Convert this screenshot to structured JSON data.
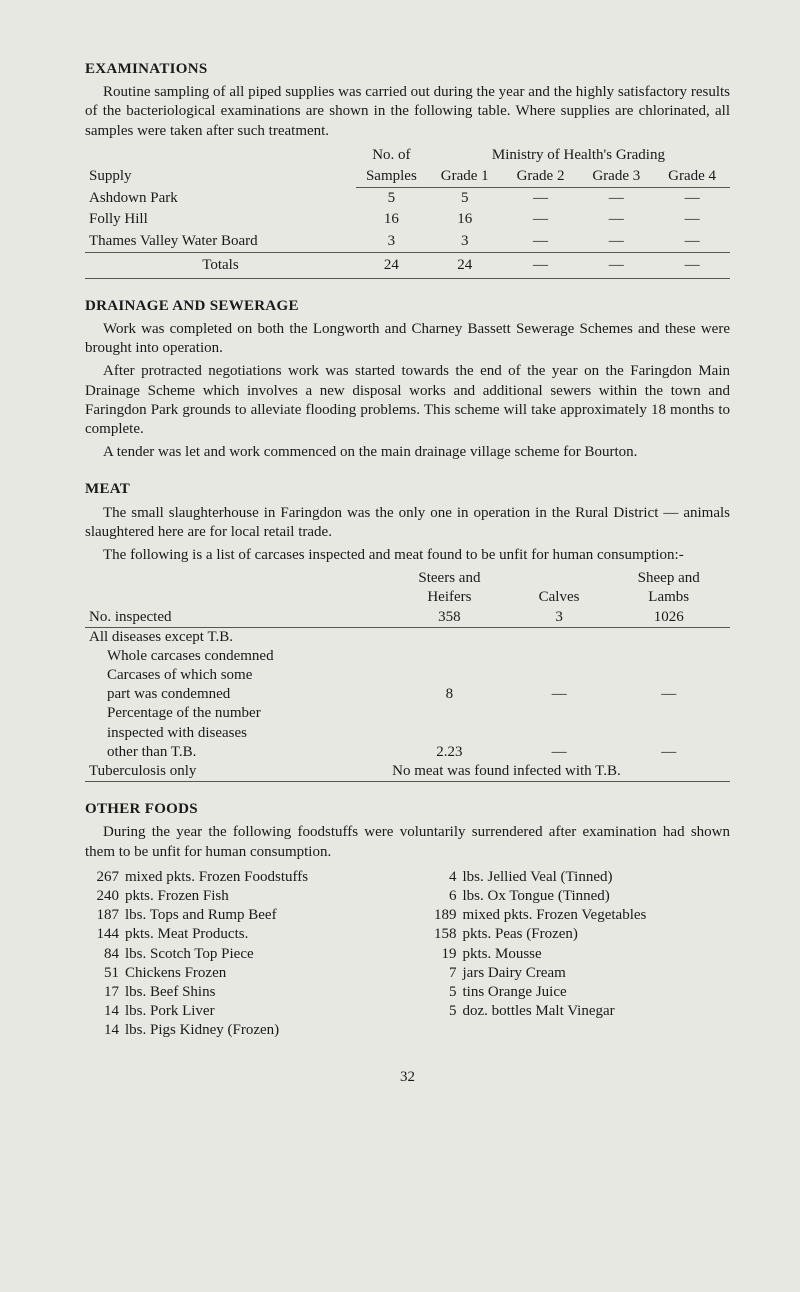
{
  "exam": {
    "heading": "EXAMINATIONS",
    "intro": "Routine sampling of all piped supplies was carried out during the year and the highly satisfactory results of the bacteriological examinations are shown in the following table. Where supplies are chlorinated, all samples were taken after such treatment.",
    "header": {
      "supply": "Supply",
      "noOf": "No. of",
      "samples": "Samples",
      "ministry": "Ministry of Health's Grading",
      "g1": "Grade 1",
      "g2": "Grade 2",
      "g3": "Grade 3",
      "g4": "Grade 4"
    },
    "rows": [
      {
        "name": "Ashdown Park",
        "n": "5",
        "g1": "5",
        "g2": "—",
        "g3": "—",
        "g4": "—"
      },
      {
        "name": "Folly Hill",
        "n": "16",
        "g1": "16",
        "g2": "—",
        "g3": "—",
        "g4": "—"
      },
      {
        "name": "Thames Valley Water Board",
        "n": "3",
        "g1": "3",
        "g2": "—",
        "g3": "—",
        "g4": "—"
      }
    ],
    "totals": {
      "label": "Totals",
      "n": "24",
      "g1": "24",
      "g2": "—",
      "g3": "—",
      "g4": "—"
    }
  },
  "drainage": {
    "heading": "DRAINAGE AND SEWERAGE",
    "p1": "Work was completed on both the Longworth and Charney Bassett Sewerage Schemes and these were brought into operation.",
    "p2": "After protracted negotiations work was started towards the end of the year on the Faringdon Main Drainage Scheme which involves a new disposal works and additional sewers within the town and Faringdon Park grounds to alleviate flooding problems. This scheme will take approximately 18 months to complete.",
    "p3": "A tender was let and work commenced on the main drainage village scheme for Bourton."
  },
  "meat": {
    "heading": "MEAT",
    "p1": "The small slaughterhouse in Faringdon was the only one in operation in the Rural District — animals slaughtered here are for local retail trade.",
    "p2": "The following is a list of carcases inspected and meat found to be unfit for human consumption:-",
    "header": {
      "noInspected": "No. inspected",
      "steers1": "Steers and",
      "steers2": "Heifers",
      "calves": "Calves",
      "sheep1": "Sheep and",
      "sheep2": "Lambs",
      "v1": "358",
      "v2": "3",
      "v3": "1026"
    },
    "r1": "All diseases except T.B.",
    "r2": "Whole carcases condemned",
    "r3a": "Carcases of which some",
    "r3b": "part was condemned",
    "r3v": "8",
    "dash": "—",
    "r4a": "Percentage of the number",
    "r4b": "inspected with diseases",
    "r4c": "other than T.B.",
    "r4v": "2.23",
    "r5": "Tuberculosis only",
    "r5v": "No meat was found infected with T.B."
  },
  "foods": {
    "heading": "OTHER FOODS",
    "intro": "During the year the following foodstuffs were voluntarily surrendered after examination had shown them to be unfit for human consumption.",
    "left": [
      {
        "q": "267",
        "d": "mixed pkts. Frozen Foodstuffs"
      },
      {
        "q": "240",
        "d": "pkts. Frozen Fish"
      },
      {
        "q": "187",
        "d": "lbs. Tops and Rump Beef"
      },
      {
        "q": "144",
        "d": "pkts. Meat Products."
      },
      {
        "q": "84",
        "d": "lbs. Scotch Top Piece"
      },
      {
        "q": "51",
        "d": "Chickens Frozen"
      },
      {
        "q": "17",
        "d": "lbs. Beef Shins"
      },
      {
        "q": "14",
        "d": "lbs. Pork Liver"
      },
      {
        "q": "14",
        "d": "lbs. Pigs Kidney (Frozen)"
      }
    ],
    "right": [
      {
        "q": "4",
        "d": "lbs. Jellied Veal (Tinned)"
      },
      {
        "q": "6",
        "d": "lbs. Ox Tongue (Tinned)"
      },
      {
        "q": "189",
        "d": "mixed pkts. Frozen Vegetables"
      },
      {
        "q": "158",
        "d": "pkts. Peas (Frozen)"
      },
      {
        "q": "19",
        "d": "pkts. Mousse"
      },
      {
        "q": "7",
        "d": "jars Dairy Cream"
      },
      {
        "q": "5",
        "d": "tins Orange Juice"
      },
      {
        "q": "5",
        "d": "doz. bottles Malt Vinegar"
      }
    ]
  },
  "pageNumber": "32"
}
